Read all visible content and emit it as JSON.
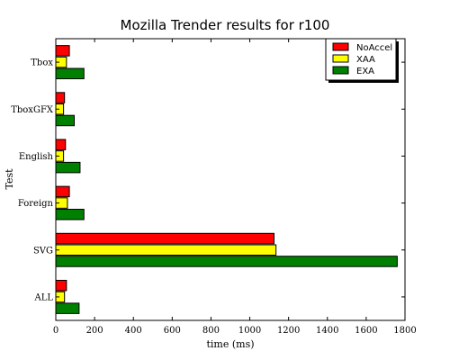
{
  "chart_data": {
    "type": "bar",
    "orientation": "horizontal",
    "title": "Mozilla Trender results for r100",
    "xlabel": "time (ms)",
    "ylabel": "Test",
    "categories": [
      "Tbox",
      "TboxGFX",
      "English",
      "Foreign",
      "SVG",
      "ALL"
    ],
    "series": [
      {
        "name": "NoAccel",
        "color": "#ff0000",
        "values": [
          70,
          45,
          50,
          70,
          1125,
          55
        ]
      },
      {
        "name": "XAA",
        "color": "#ffff00",
        "values": [
          55,
          40,
          40,
          60,
          1135,
          45
        ]
      },
      {
        "name": "EXA",
        "color": "#008000",
        "values": [
          145,
          95,
          125,
          145,
          1760,
          120
        ]
      }
    ],
    "xlim": [
      0,
      1800
    ],
    "xticks": [
      "0",
      "200",
      "400",
      "600",
      "800",
      "1000",
      "1200",
      "1400",
      "1600",
      "1800"
    ],
    "grid": false,
    "legend_position": "top-right"
  }
}
